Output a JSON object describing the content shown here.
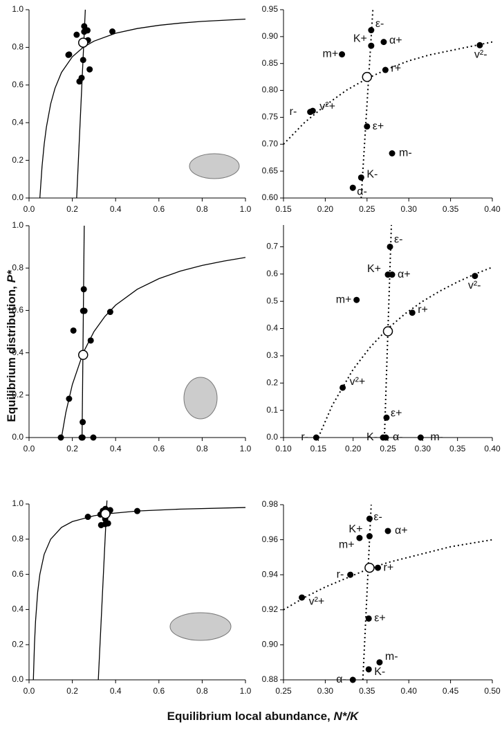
{
  "figure": {
    "y_label": {
      "text": "Equilibrium distribution, ",
      "symbol": "P*"
    },
    "x_label": {
      "text": "Equilibrium local abundance, ",
      "symbol": "N*/K"
    }
  },
  "chart_data": [
    {
      "type": "line",
      "xlim": [
        0,
        1
      ],
      "ylim": [
        0,
        1
      ],
      "xticks": [
        {
          "value": 0,
          "label": "0.0"
        },
        0.2,
        0.4,
        0.6,
        0.8,
        {
          "value": 1,
          "label": "1.0"
        }
      ],
      "yticks": [
        {
          "value": 0,
          "label": "0.0"
        },
        0.2,
        0.4,
        0.6,
        0.8,
        {
          "value": 1,
          "label": "1.0"
        }
      ],
      "lines": [
        {
          "style": "solid",
          "x": [
            0.05,
            0.06,
            0.07,
            0.08,
            0.1,
            0.12,
            0.15,
            0.2,
            0.25,
            0.3,
            0.4,
            0.5,
            0.6,
            0.7,
            0.8,
            0.9,
            1.0
          ],
          "values": [
            0,
            0.167,
            0.286,
            0.375,
            0.5,
            0.583,
            0.667,
            0.75,
            0.8,
            0.833,
            0.875,
            0.9,
            0.917,
            0.929,
            0.938,
            0.944,
            0.95
          ]
        },
        {
          "style": "solid",
          "x": [
            0.22,
            0.26
          ],
          "values": [
            0,
            1
          ]
        }
      ],
      "points": {
        "x": [
          0.255,
          0.255,
          0.27,
          0.22,
          0.385,
          0.272,
          0.182,
          0.185,
          0.25,
          0.28,
          0.243,
          0.233
        ],
        "values": [
          0.912,
          0.883,
          0.89,
          0.867,
          0.884,
          0.838,
          0.76,
          0.762,
          0.733,
          0.683,
          0.638,
          0.619
        ]
      },
      "open_point": {
        "x": 0.25,
        "value": 0.825
      }
    },
    {
      "type": "line",
      "xlim": [
        0.15,
        0.4
      ],
      "ylim": [
        0.6,
        0.95
      ],
      "xticks": [
        0.15,
        {
          "value": 0.2,
          "label": "0.20"
        },
        0.25,
        {
          "value": 0.3,
          "label": "0.30"
        },
        0.35,
        {
          "value": 0.4,
          "label": "0.40"
        }
      ],
      "yticks": [
        {
          "value": 0.6,
          "label": "0.60"
        },
        0.65,
        {
          "value": 0.7,
          "label": "0.70"
        },
        0.75,
        {
          "value": 0.8,
          "label": "0.80"
        },
        0.85,
        {
          "value": 0.9,
          "label": "0.90"
        },
        0.95
      ],
      "lines": [
        {
          "style": "dotted",
          "x": [
            0.15,
            0.175,
            0.2,
            0.225,
            0.25,
            0.275,
            0.3,
            0.325,
            0.35,
            0.375,
            0.4
          ],
          "values": [
            0.7,
            0.74,
            0.772,
            0.8,
            0.822,
            0.84,
            0.855,
            0.866,
            0.874,
            0.882,
            0.89
          ]
        },
        {
          "style": "dotted",
          "x": [
            0.243,
            0.257
          ],
          "values": [
            0.6,
            0.95
          ]
        }
      ],
      "points": {
        "x": [
          0.255,
          0.255,
          0.27,
          0.22,
          0.385,
          0.272,
          0.182,
          0.185,
          0.25,
          0.28,
          0.243,
          0.233
        ],
        "values": [
          0.912,
          0.883,
          0.89,
          0.867,
          0.884,
          0.838,
          0.76,
          0.762,
          0.733,
          0.683,
          0.638,
          0.619
        ],
        "labels": [
          "ε-",
          "K+",
          "α+",
          "m+",
          "v²-",
          "r+",
          "r-",
          "v²+",
          "ε+",
          "m-",
          "K-",
          "α-"
        ]
      },
      "open_point": {
        "x": 0.25,
        "value": 0.825
      }
    },
    {
      "type": "line",
      "xlim": [
        0,
        1
      ],
      "ylim": [
        0,
        1
      ],
      "xticks": [
        {
          "value": 0,
          "label": "0.0"
        },
        0.2,
        0.4,
        0.6,
        0.8,
        {
          "value": 1,
          "label": "1.0"
        }
      ],
      "yticks": [
        {
          "value": 0,
          "label": "0.0"
        },
        0.2,
        0.4,
        0.6,
        0.8,
        {
          "value": 1,
          "label": "1.0"
        }
      ],
      "lines": [
        {
          "style": "solid",
          "x": [
            0.15,
            0.17,
            0.2,
            0.25,
            0.3,
            0.35,
            0.4,
            0.5,
            0.6,
            0.7,
            0.8,
            0.9,
            1.0
          ],
          "values": [
            0,
            0.118,
            0.25,
            0.4,
            0.5,
            0.571,
            0.625,
            0.7,
            0.75,
            0.786,
            0.8125,
            0.833,
            0.85
          ]
        },
        {
          "style": "solid",
          "x": [
            0.245,
            0.255
          ],
          "values": [
            0,
            1
          ]
        }
      ],
      "points": {
        "x": [
          0.253,
          0.25,
          0.256,
          0.205,
          0.375,
          0.285,
          0.185,
          0.248,
          0.147,
          0.243,
          0.247,
          0.297
        ],
        "values": [
          0.7,
          0.598,
          0.598,
          0.505,
          0.593,
          0.458,
          0.183,
          0.073,
          0,
          0,
          0,
          0
        ]
      },
      "open_point": {
        "x": 0.25,
        "value": 0.39
      }
    },
    {
      "type": "line",
      "xlim": [
        0.1,
        0.4
      ],
      "ylim": [
        0,
        0.78
      ],
      "xticks": [
        {
          "value": 0.1,
          "label": "0.10"
        },
        0.15,
        {
          "value": 0.2,
          "label": "0.20"
        },
        0.25,
        {
          "value": 0.3,
          "label": "0.30"
        },
        0.35,
        {
          "value": 0.4,
          "label": "0.40"
        }
      ],
      "yticks": [
        {
          "value": 0,
          "label": "0.0"
        },
        0.1,
        0.2,
        0.3,
        0.4,
        0.5,
        0.6,
        0.7
      ],
      "lines": [
        {
          "style": "dotted",
          "x": [
            0.15,
            0.17,
            0.2,
            0.225,
            0.25,
            0.275,
            0.3,
            0.325,
            0.35,
            0.375,
            0.4
          ],
          "values": [
            0,
            0.118,
            0.25,
            0.333,
            0.4,
            0.455,
            0.5,
            0.538,
            0.571,
            0.6,
            0.625
          ]
        },
        {
          "style": "dotted",
          "x": [
            0.245,
            0.255
          ],
          "values": [
            0,
            0.78
          ]
        }
      ],
      "points": {
        "x": [
          0.253,
          0.25,
          0.256,
          0.205,
          0.375,
          0.285,
          0.185,
          0.248,
          0.147,
          0.243,
          0.247,
          0.297
        ],
        "values": [
          0.7,
          0.598,
          0.598,
          0.505,
          0.593,
          0.458,
          0.183,
          0.073,
          0,
          0,
          0,
          0
        ],
        "labels": [
          "ε-",
          "K+",
          "α+",
          "m+",
          "v²-",
          "r+",
          "v²+",
          "ε+",
          "r-",
          "K-",
          "α-",
          "m-"
        ]
      },
      "open_point": {
        "x": 0.25,
        "value": 0.39
      }
    },
    {
      "type": "line",
      "xlim": [
        0,
        1
      ],
      "ylim": [
        0,
        1
      ],
      "xticks": [
        {
          "value": 0,
          "label": "0.0"
        },
        0.2,
        0.4,
        0.6,
        0.8,
        {
          "value": 1,
          "label": "1.0"
        }
      ],
      "yticks": [
        {
          "value": 0,
          "label": "0.0"
        },
        0.2,
        0.4,
        0.6,
        0.8,
        {
          "value": 1,
          "label": "1.0"
        }
      ],
      "lines": [
        {
          "style": "solid",
          "x": [
            0.02,
            0.025,
            0.03,
            0.04,
            0.05,
            0.07,
            0.1,
            0.15,
            0.2,
            0.3,
            0.35,
            0.5,
            0.7,
            1.0
          ],
          "values": [
            0,
            0.2,
            0.333,
            0.5,
            0.6,
            0.714,
            0.8,
            0.867,
            0.9,
            0.933,
            0.943,
            0.96,
            0.971,
            0.98
          ]
        },
        {
          "style": "solid",
          "x": [
            0.32,
            0.36
          ],
          "values": [
            0,
            1.02
          ]
        }
      ],
      "points": {
        "x": [
          0.353,
          0.353,
          0.375,
          0.341,
          0.33,
          0.363,
          0.272,
          0.352,
          0.365,
          0.333,
          0.352,
          0.5
        ],
        "values": [
          0.972,
          0.962,
          0.965,
          0.961,
          0.94,
          0.944,
          0.927,
          0.915,
          0.89,
          0.88,
          0.886,
          0.96
        ]
      },
      "open_point": {
        "x": 0.353,
        "value": 0.944
      }
    },
    {
      "type": "line",
      "xlim": [
        0.25,
        0.5
      ],
      "ylim": [
        0.88,
        0.98
      ],
      "xticks": [
        0.25,
        {
          "value": 0.3,
          "label": "0.30"
        },
        0.35,
        {
          "value": 0.4,
          "label": "0.40"
        },
        0.45,
        {
          "value": 0.5,
          "label": "0.50"
        }
      ],
      "yticks": [
        0.88,
        {
          "value": 0.9,
          "label": "0.90"
        },
        0.92,
        0.94,
        0.96,
        0.98
      ],
      "lines": [
        {
          "style": "dotted",
          "x": [
            0.25,
            0.275,
            0.3,
            0.325,
            0.35,
            0.375,
            0.4,
            0.425,
            0.45,
            0.475,
            0.5
          ],
          "values": [
            0.92,
            0.927,
            0.933,
            0.938,
            0.943,
            0.947,
            0.95,
            0.953,
            0.956,
            0.958,
            0.96
          ]
        },
        {
          "style": "dotted",
          "x": [
            0.345,
            0.355
          ],
          "values": [
            0.88,
            0.98
          ]
        }
      ],
      "points": {
        "x": [
          0.353,
          0.353,
          0.375,
          0.341,
          0.33,
          0.363,
          0.272,
          0.352,
          0.365,
          0.333,
          0.352
        ],
        "values": [
          0.972,
          0.962,
          0.965,
          0.961,
          0.94,
          0.944,
          0.927,
          0.915,
          0.89,
          0.88,
          0.886
        ],
        "labels": [
          "ε-",
          "K+",
          "α+",
          "m+",
          "r-",
          "r+",
          "v²+",
          "ε+",
          "m-",
          "α-",
          "K-"
        ]
      },
      "open_point": {
        "x": 0.353,
        "value": 0.944
      }
    }
  ]
}
